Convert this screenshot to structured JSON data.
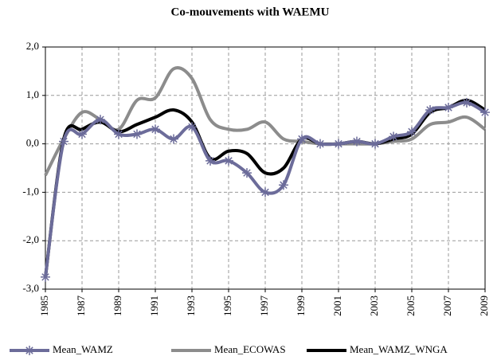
{
  "chart_data": {
    "type": "line",
    "title": "Co-mouvements with WAEMU",
    "x": [
      1985,
      1986,
      1987,
      1988,
      1989,
      1990,
      1991,
      1992,
      1993,
      1994,
      1995,
      1996,
      1997,
      1998,
      1999,
      2000,
      2001,
      2002,
      2003,
      2004,
      2005,
      2006,
      2007,
      2008,
      2009
    ],
    "xlim": [
      1985,
      2009
    ],
    "xticks": [
      1985,
      1987,
      1989,
      1991,
      1993,
      1995,
      1997,
      1999,
      2001,
      2003,
      2005,
      2007,
      2009
    ],
    "ylim": [
      -3,
      2
    ],
    "yticks": [
      {
        "value": 2,
        "label": "2,0"
      },
      {
        "value": 1,
        "label": "1,0"
      },
      {
        "value": 0,
        "label": "0,0"
      },
      {
        "value": -1,
        "label": "-1,0"
      },
      {
        "value": -2,
        "label": "-2,0"
      },
      {
        "value": -3,
        "label": "-3,0"
      }
    ],
    "grid": true,
    "series": [
      {
        "name": "Mean_WAMZ",
        "color": "#6c6c9a",
        "marker": "asterisk",
        "values": [
          -2.75,
          0.05,
          0.2,
          0.5,
          0.2,
          0.2,
          0.3,
          0.1,
          0.35,
          -0.35,
          -0.35,
          -0.6,
          -1.0,
          -0.85,
          0.1,
          0.0,
          0.0,
          0.05,
          0.0,
          0.15,
          0.25,
          0.7,
          0.75,
          0.85,
          0.65
        ]
      },
      {
        "name": "Mean_ECOWAS",
        "color": "#8c8c8c",
        "values": [
          -0.65,
          0.1,
          0.65,
          0.5,
          0.3,
          0.9,
          0.95,
          1.55,
          1.35,
          0.5,
          0.3,
          0.3,
          0.45,
          0.1,
          0.05,
          0.0,
          0.0,
          0.0,
          0.0,
          0.05,
          0.1,
          0.4,
          0.45,
          0.55,
          0.3
        ]
      },
      {
        "name": "Mean_WAMZ_WNGA",
        "color": "#000000",
        "values": [
          -2.75,
          0.1,
          0.3,
          0.45,
          0.25,
          0.4,
          0.55,
          0.7,
          0.45,
          -0.3,
          -0.15,
          -0.2,
          -0.6,
          -0.5,
          0.1,
          0.0,
          0.0,
          0.05,
          0.0,
          0.1,
          0.2,
          0.65,
          0.75,
          0.9,
          0.7
        ]
      }
    ]
  }
}
